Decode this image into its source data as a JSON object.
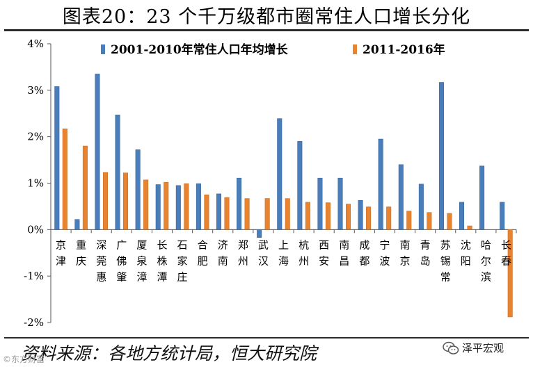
{
  "header": {
    "title": "图表20：23 个千万级都市圈常住人口增长分化"
  },
  "chart_data": {
    "type": "bar",
    "title": "图表20：23 个千万级都市圈常住人口增长分化",
    "categories": [
      "京津",
      "重庆",
      "深莞惠",
      "广佛肇",
      "厦泉漳",
      "长株潭",
      "石家庄",
      "合肥",
      "济南",
      "郑州",
      "武汉",
      "上海",
      "杭州",
      "西安",
      "南昌",
      "成都",
      "宁波",
      "南京",
      "青岛",
      "苏锡常",
      "沈阳",
      "哈尔滨",
      "长春"
    ],
    "series": [
      {
        "name": "2001-2010年常住人口年均增长",
        "color": "#4a7ebb",
        "values": [
          3.08,
          0.22,
          3.35,
          2.47,
          1.72,
          0.97,
          0.95,
          0.99,
          0.77,
          1.11,
          -0.17,
          2.39,
          1.9,
          1.11,
          1.11,
          0.63,
          1.95,
          1.4,
          0.98,
          3.17,
          0.59,
          1.37,
          0.59
        ]
      },
      {
        "name": "2011-2016年",
        "color": "#e8832f",
        "values": [
          2.17,
          1.8,
          1.23,
          1.22,
          1.07,
          1.02,
          0.99,
          0.75,
          0.69,
          0.67,
          0.67,
          0.67,
          0.59,
          0.58,
          0.55,
          0.49,
          0.49,
          0.4,
          0.37,
          0.35,
          0.08,
          null,
          -1.88
        ]
      }
    ],
    "yticks": [
      4,
      3,
      2,
      1,
      0,
      -1,
      -2
    ],
    "ytick_labels": [
      "4%",
      "3%",
      "2%",
      "1%",
      "0%",
      "-1%",
      "-2%"
    ],
    "ylim": [
      -2,
      4
    ],
    "legend": "top",
    "xlabel": "",
    "ylabel": ""
  },
  "footer": {
    "source": "资料来源：各地方统计局，恒大研究院",
    "watermark": "©东方财富",
    "brand": "泽平宏观"
  }
}
